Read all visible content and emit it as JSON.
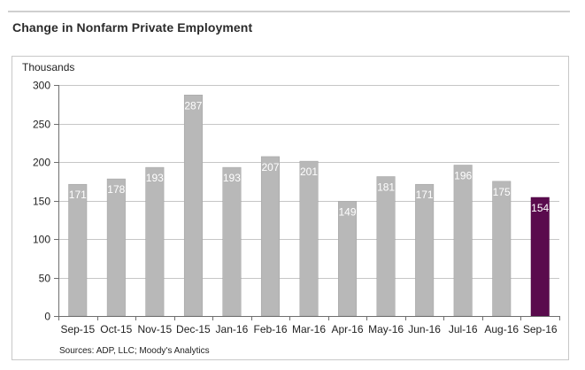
{
  "page": {
    "title": "Change in Nonfarm Private Employment"
  },
  "colors": {
    "bar": "#b8b8b8",
    "highlight_bar": "#5a0b4d",
    "gridline": "#c6c6c6",
    "axis": "#6e6e6e",
    "value_label": "#ffffff"
  },
  "chart_data": {
    "type": "bar",
    "title": "Change in Nonfarm Private Employment",
    "ylabel": "Thousands",
    "xlabel": "",
    "ylim": [
      0,
      300
    ],
    "yticks": [
      0,
      50,
      100,
      150,
      200,
      250,
      300
    ],
    "grid": true,
    "categories": [
      "Sep-15",
      "Oct-15",
      "Nov-15",
      "Dec-15",
      "Jan-16",
      "Feb-16",
      "Mar-16",
      "Apr-16",
      "May-16",
      "Jun-16",
      "Jul-16",
      "Aug-16",
      "Sep-16"
    ],
    "series": [
      {
        "name": "Change in Nonfarm Private Employment",
        "values": [
          171,
          178,
          193,
          287,
          193,
          207,
          201,
          149,
          181,
          171,
          196,
          175,
          154
        ]
      }
    ],
    "highlight_category": "Sep-16",
    "source": "Sources: ADP, LLC; Moody's Analytics"
  }
}
